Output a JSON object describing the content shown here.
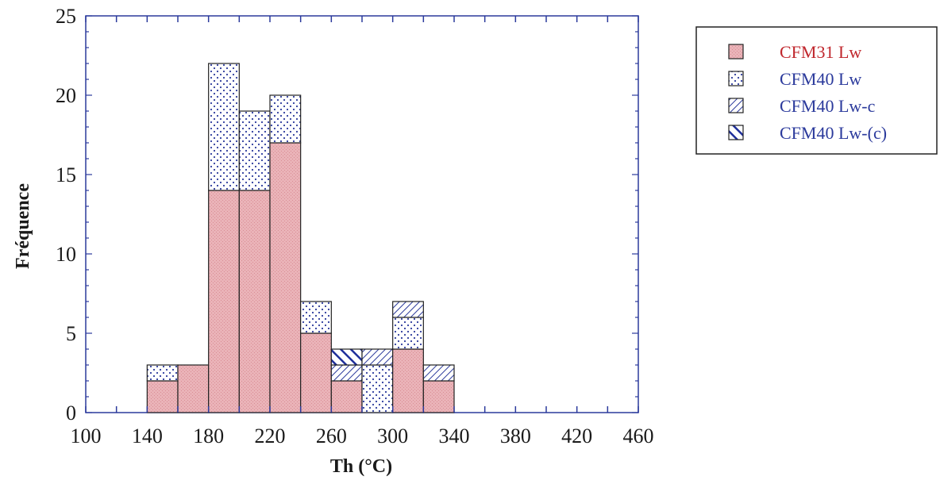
{
  "chart_data": {
    "type": "bar",
    "stacked": true,
    "title": "",
    "xlabel": "Th (°C)",
    "ylabel": "Fréquence",
    "xlim": [
      100,
      460
    ],
    "ylim": [
      0,
      25
    ],
    "xticks": [
      100,
      140,
      180,
      220,
      260,
      300,
      340,
      380,
      420,
      460
    ],
    "yticks": [
      0,
      5,
      10,
      15,
      20,
      25
    ],
    "bin_width": 20,
    "bin_starts": [
      140,
      160,
      180,
      200,
      220,
      240,
      260,
      280,
      300,
      320
    ],
    "series": [
      {
        "name": "CFM31 Lw",
        "values": [
          2,
          3,
          14,
          14,
          17,
          5,
          2,
          0,
          4,
          2
        ],
        "pattern": "pink-fill",
        "color": "#eab3b8",
        "label_color": "#c0272d"
      },
      {
        "name": "CFM40 Lw",
        "values": [
          1,
          0,
          8,
          5,
          3,
          2,
          0,
          3,
          2,
          0
        ],
        "pattern": "blue-dots",
        "color": "#2b3a9c",
        "label_color": "#2b3a9c"
      },
      {
        "name": "CFM40 Lw-c",
        "values": [
          0,
          0,
          0,
          0,
          0,
          0,
          1,
          1,
          1,
          1
        ],
        "pattern": "thin-hatch",
        "color": "#2b3a9c",
        "label_color": "#2b3a9c"
      },
      {
        "name": "CFM40 Lw-(c)",
        "values": [
          0,
          0,
          0,
          0,
          0,
          0,
          1,
          0,
          0,
          0
        ],
        "pattern": "bold-hatch",
        "color": "#1f2f9a",
        "label_color": "#2b3a9c"
      }
    ],
    "grid": false,
    "legend_position": "top-right",
    "axis_color": "#2b3a9c"
  }
}
